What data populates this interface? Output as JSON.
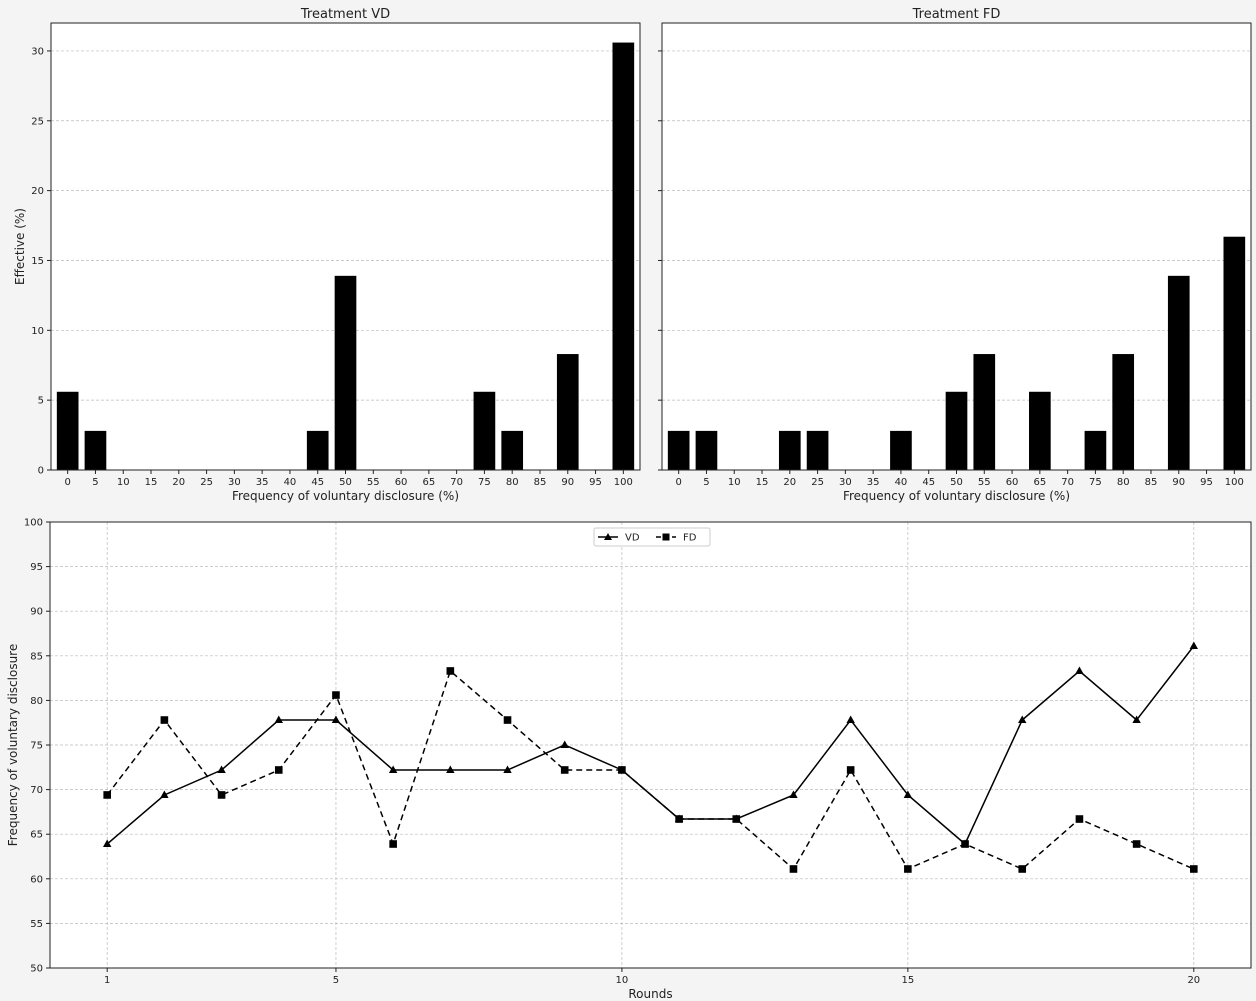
{
  "chart_data": [
    {
      "type": "bar",
      "title": "Treatment VD",
      "xlabel": "Frequency of voluntary disclosure (%)",
      "ylabel": "Effective (%)",
      "ylim": [
        0,
        32
      ],
      "yticks": [
        0,
        5,
        10,
        15,
        20,
        25,
        30
      ],
      "grid": "y",
      "categories": [
        "0",
        "5",
        "10",
        "15",
        "20",
        "25",
        "30",
        "35",
        "40",
        "45",
        "50",
        "55",
        "60",
        "65",
        "70",
        "75",
        "80",
        "85",
        "90",
        "95",
        "100"
      ],
      "values": [
        5.6,
        2.8,
        0,
        0,
        0,
        0,
        0,
        0,
        0,
        2.8,
        13.9,
        0,
        0,
        0,
        0,
        5.6,
        2.8,
        0,
        8.3,
        0,
        30.6
      ],
      "colors": {
        "bar": "#000000",
        "grid": "#bbbbbb"
      }
    },
    {
      "type": "bar",
      "title": "Treatment FD",
      "xlabel": "Frequency of voluntary disclosure (%)",
      "ylabel": "",
      "ylim": [
        0,
        32
      ],
      "yticks": [
        0,
        5,
        10,
        15,
        20,
        25,
        30
      ],
      "grid": "y",
      "categories": [
        "0",
        "5",
        "10",
        "15",
        "20",
        "25",
        "30",
        "35",
        "40",
        "45",
        "50",
        "55",
        "60",
        "65",
        "70",
        "75",
        "80",
        "85",
        "90",
        "95",
        "100"
      ],
      "values": [
        2.8,
        2.8,
        0,
        0,
        2.8,
        2.8,
        0,
        0,
        2.8,
        0,
        5.6,
        8.3,
        0,
        5.6,
        0,
        2.8,
        8.3,
        0,
        13.9,
        0,
        16.7
      ],
      "colors": {
        "bar": "#000000",
        "grid": "#bbbbbb"
      }
    },
    {
      "type": "line",
      "title": "",
      "xlabel": "Rounds",
      "ylabel": "Frequency of voluntary disclosure",
      "ylim": [
        50,
        100
      ],
      "yticks": [
        50,
        55,
        60,
        65,
        70,
        75,
        80,
        85,
        90,
        95,
        100
      ],
      "xticks": [
        1,
        5,
        10,
        15,
        20
      ],
      "xlim": [
        0,
        21
      ],
      "grid": "both",
      "legend": "top-center",
      "x": [
        1,
        2,
        3,
        4,
        5,
        6,
        7,
        8,
        9,
        10,
        11,
        12,
        13,
        14,
        15,
        16,
        17,
        18,
        19,
        20
      ],
      "series": [
        {
          "name": "VD",
          "marker": "triangle",
          "dash": "solid",
          "values": [
            63.9,
            69.4,
            72.2,
            77.8,
            77.8,
            72.2,
            72.2,
            72.2,
            75.0,
            72.2,
            66.7,
            66.7,
            69.4,
            77.8,
            69.4,
            63.9,
            77.8,
            83.3,
            77.8,
            86.1
          ]
        },
        {
          "name": "FD",
          "marker": "square",
          "dash": "dashed",
          "values": [
            69.4,
            77.8,
            69.4,
            72.2,
            80.6,
            63.9,
            83.3,
            77.8,
            72.2,
            72.2,
            66.7,
            66.7,
            61.1,
            72.2,
            61.1,
            63.9,
            61.1,
            66.7,
            63.9,
            61.1
          ]
        }
      ],
      "colors": {
        "line": "#000000",
        "grid": "#bbbbbb"
      }
    }
  ]
}
